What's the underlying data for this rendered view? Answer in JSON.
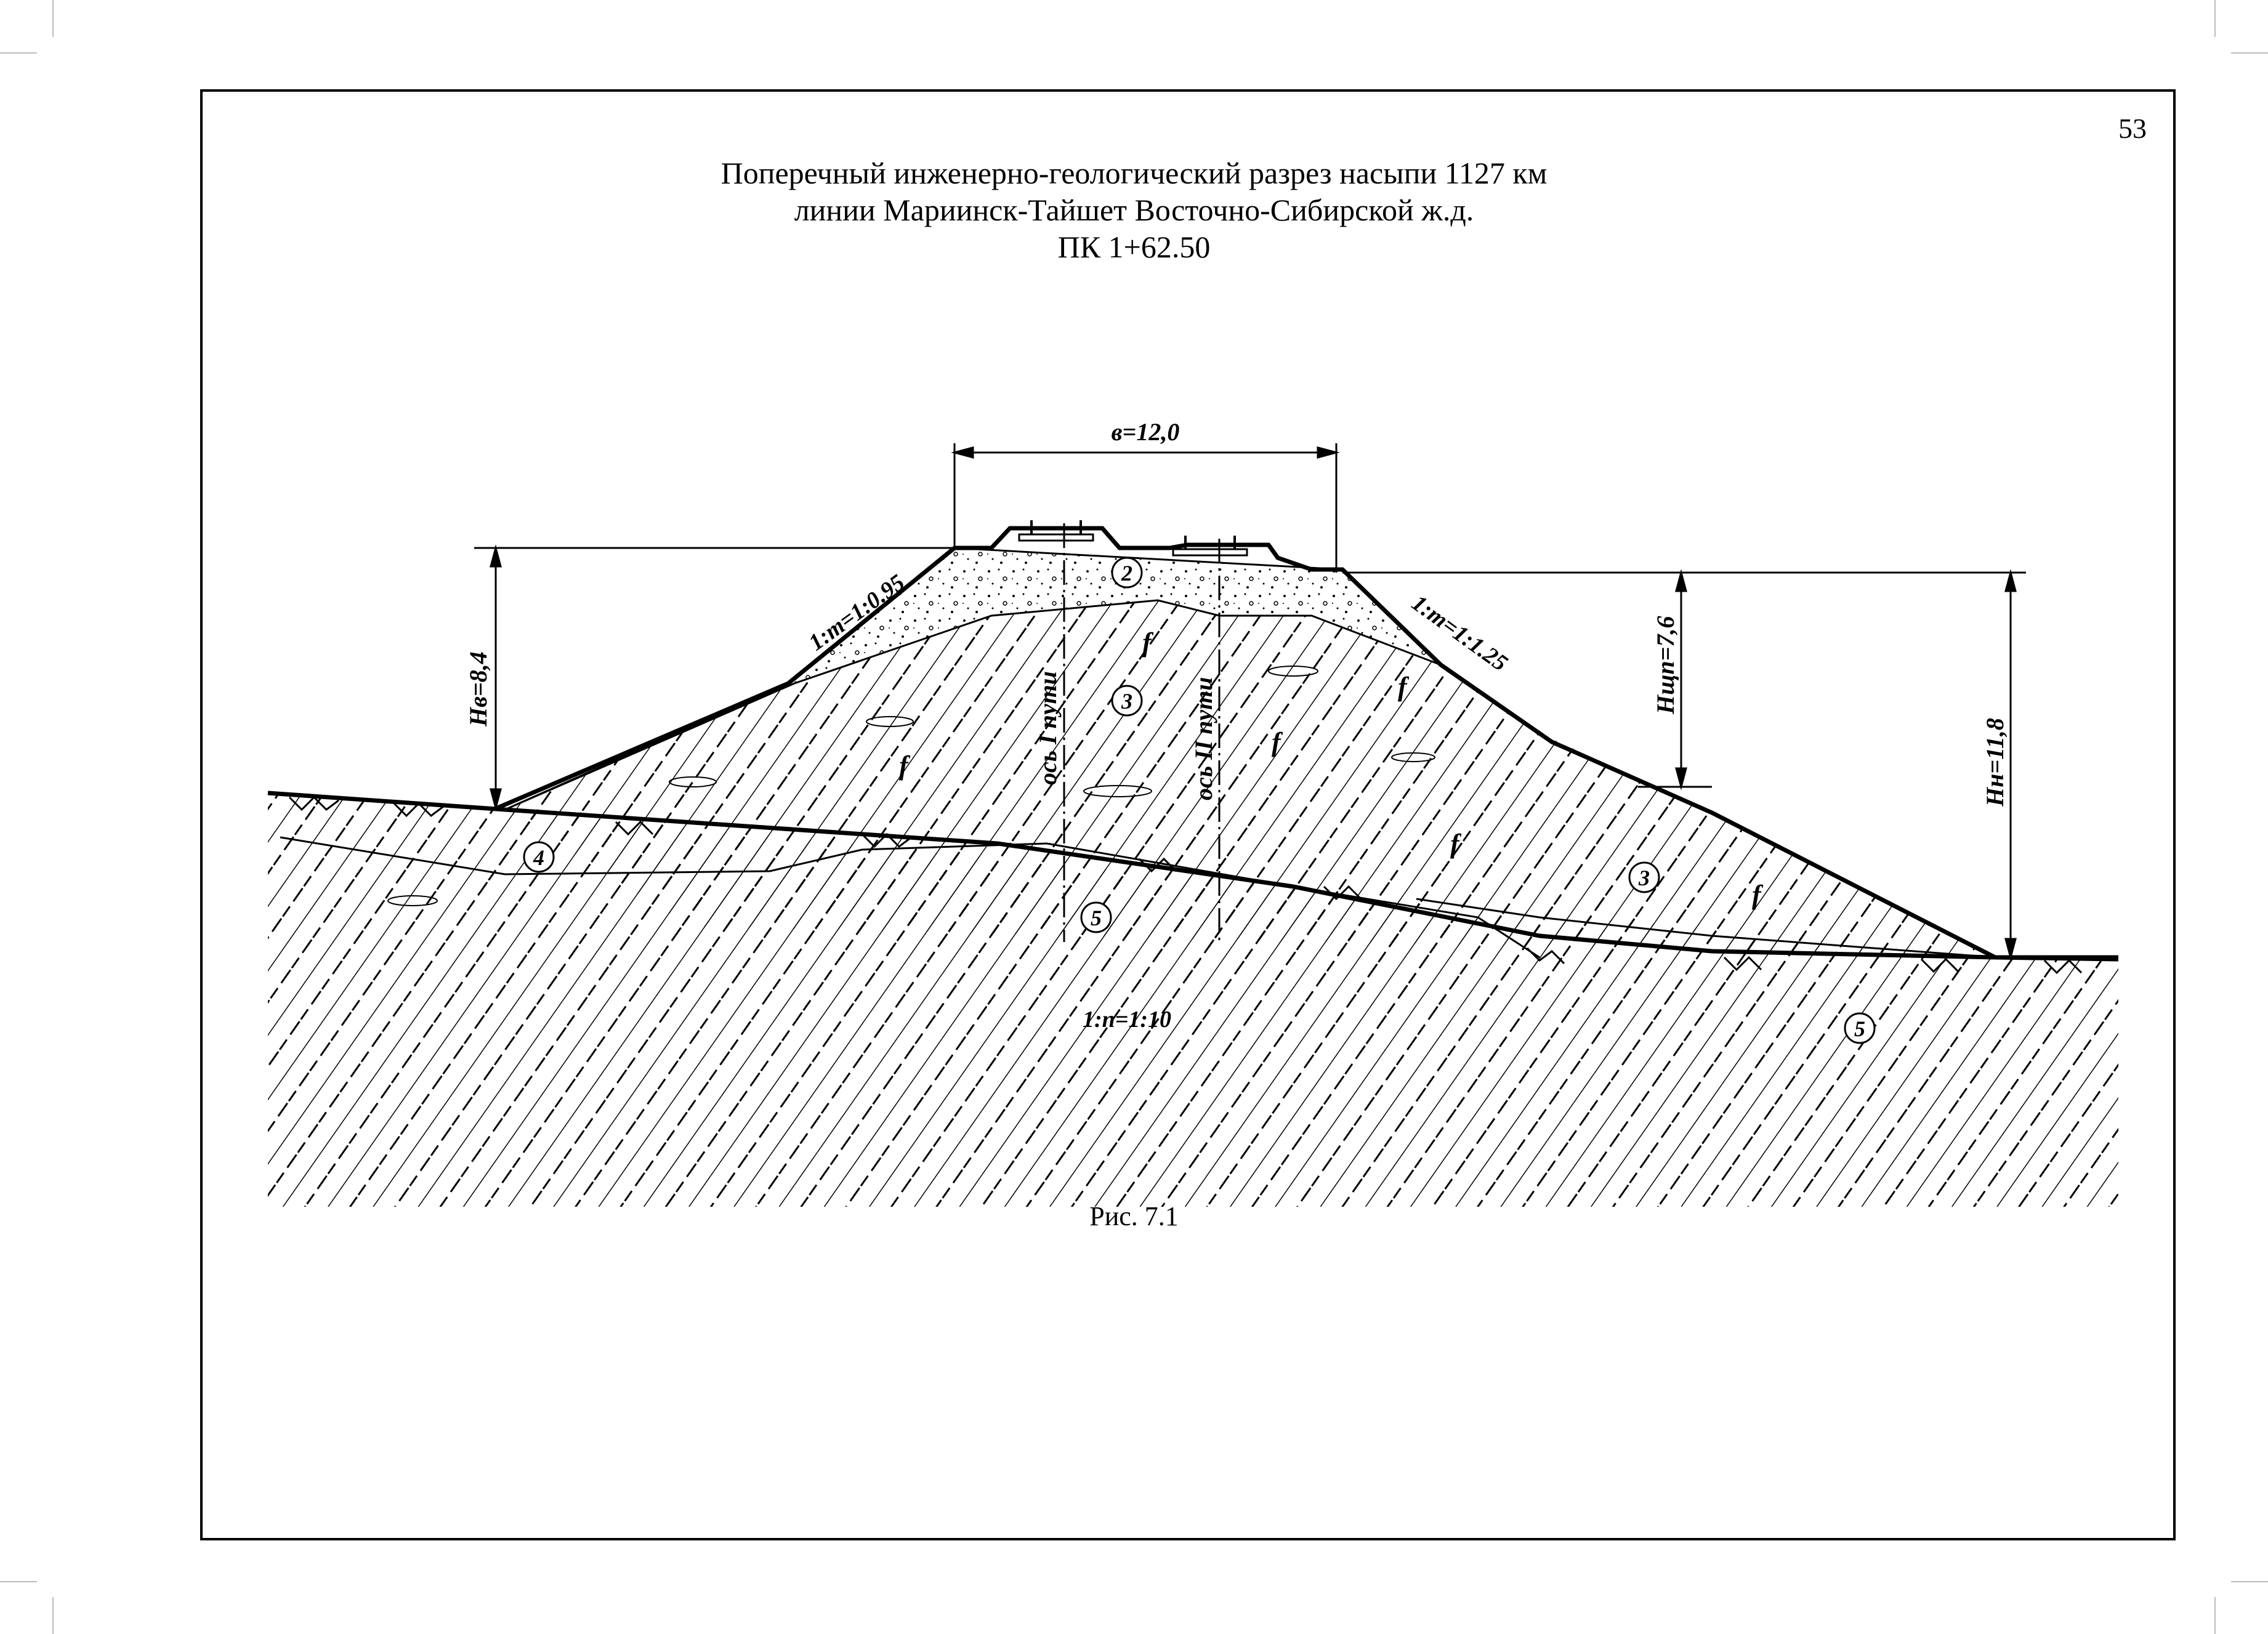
{
  "page": {
    "number": "53"
  },
  "title": {
    "line1": "Поперечный инженерно-геологический разрез насыпи 1127 км",
    "line2": "линии Мариинск-Тайшет Восточно-Сибирской ж.д.",
    "line3": "ПК 1+62.50"
  },
  "figure": {
    "width_label": "в=12,0",
    "slope_left": "1:m=1:0.95",
    "slope_right": "1:m=1:1.25",
    "ground_slope": "1:n=1:10",
    "height_left": "Hв=8,4",
    "height_mid": "Hщп=7,6",
    "height_right": "Hн=11,8",
    "axis_1": "ось I пути",
    "axis_2": "ось II пути",
    "frozen_mark": "f",
    "layers": [
      "2",
      "3",
      "3",
      "3",
      "4",
      "5",
      "5"
    ]
  },
  "caption": "Рис. 7.1",
  "colors": {
    "line": "#000000",
    "background": "#ffffff"
  }
}
